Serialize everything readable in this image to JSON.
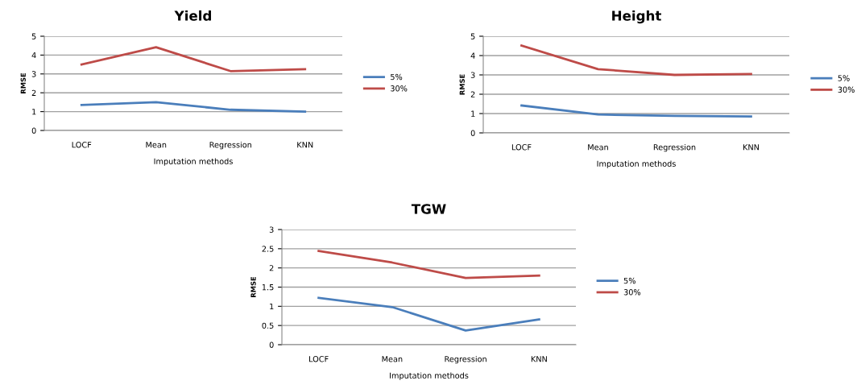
{
  "chart_data": [
    {
      "type": "line",
      "title": "Yield",
      "xlabel": "Imputation methods",
      "ylabel": "RMSE",
      "categories": [
        "LOCF",
        "Mean",
        "Regression",
        "KNN"
      ],
      "ylim": [
        0,
        5
      ],
      "yticks": [
        0,
        1,
        2,
        3,
        4,
        5
      ],
      "grid": "y",
      "legend": "right",
      "marker": "none",
      "line_style": "solid",
      "series": [
        {
          "name": "5%",
          "color": "#4a7ebb",
          "values": [
            1.35,
            1.5,
            1.1,
            1.0
          ]
        },
        {
          "name": "30%",
          "color": "#be4b48",
          "values": [
            3.5,
            4.42,
            3.15,
            3.25
          ]
        }
      ]
    },
    {
      "type": "line",
      "title": "Height",
      "xlabel": "Imputation methods",
      "ylabel": "RMSE",
      "categories": [
        "LOCF",
        "Mean",
        "Regression",
        "KNN"
      ],
      "ylim": [
        0,
        5
      ],
      "yticks": [
        0,
        1,
        2,
        3,
        4,
        5
      ],
      "grid": "y",
      "legend": "right",
      "marker": "none",
      "line_style": "solid",
      "series": [
        {
          "name": "5%",
          "color": "#4a7ebb",
          "values": [
            1.42,
            0.95,
            0.88,
            0.85
          ]
        },
        {
          "name": "30%",
          "color": "#be4b48",
          "values": [
            4.52,
            3.3,
            3.0,
            3.05
          ]
        }
      ]
    },
    {
      "type": "line",
      "title": "TGW",
      "xlabel": "Imputation methods",
      "ylabel": "RMSE",
      "categories": [
        "LOCF",
        "Mean",
        "Regression",
        "KNN"
      ],
      "ylim": [
        0,
        3
      ],
      "yticks": [
        0,
        0.5,
        1,
        1.5,
        2,
        2.5,
        3
      ],
      "grid": "y",
      "legend": "right",
      "marker": "none",
      "line_style": "solid",
      "series": [
        {
          "name": "5%",
          "color": "#4a7ebb",
          "values": [
            1.22,
            0.98,
            0.37,
            0.66
          ]
        },
        {
          "name": "30%",
          "color": "#be4b48",
          "values": [
            2.44,
            2.14,
            1.74,
            1.8
          ]
        }
      ]
    }
  ]
}
